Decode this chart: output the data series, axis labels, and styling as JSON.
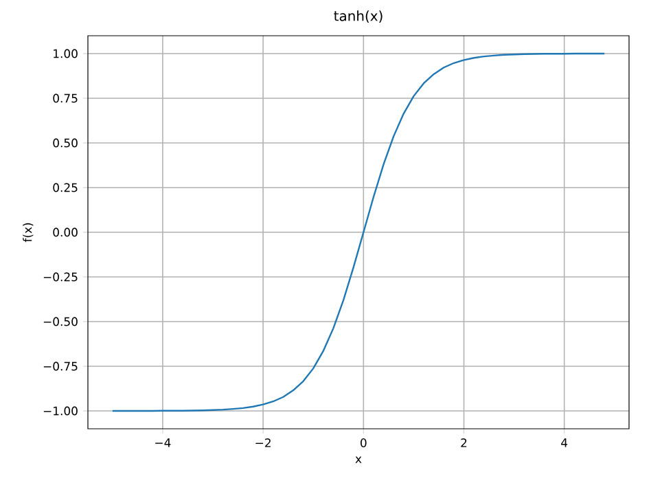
{
  "chart_data": {
    "type": "line",
    "title": "tanh(x)",
    "xlabel": "x",
    "ylabel": "f(x)",
    "x": [
      -5,
      -4.8,
      -4.6,
      -4.4,
      -4.2,
      -4,
      -3.8,
      -3.6,
      -3.4,
      -3.2,
      -3,
      -2.8,
      -2.6,
      -2.4,
      -2.2,
      -2,
      -1.8,
      -1.6,
      -1.4,
      -1.2,
      -1,
      -0.8,
      -0.6,
      -0.4,
      -0.2,
      0,
      0.2,
      0.4,
      0.6,
      0.8,
      1,
      1.2,
      1.4,
      1.6,
      1.8,
      2,
      2.2,
      2.4,
      2.6,
      2.8,
      3,
      3.2,
      3.4,
      3.6,
      3.8,
      4,
      4.2,
      4.4,
      4.6,
      4.8
    ],
    "series": [
      {
        "color": "#1f77b4",
        "values": [
          -1.0,
          -1.0,
          -1.0,
          -1.0,
          -1.0,
          -0.999,
          -0.999,
          -0.999,
          -0.998,
          -0.997,
          -0.995,
          -0.993,
          -0.989,
          -0.984,
          -0.976,
          -0.964,
          -0.947,
          -0.922,
          -0.885,
          -0.834,
          -0.762,
          -0.664,
          -0.537,
          -0.38,
          -0.197,
          0.0,
          0.197,
          0.38,
          0.537,
          0.664,
          0.762,
          0.834,
          0.885,
          0.922,
          0.947,
          0.964,
          0.976,
          0.984,
          0.989,
          0.993,
          0.995,
          0.997,
          0.998,
          0.999,
          0.999,
          0.999,
          1.0,
          1.0,
          1.0,
          1.0
        ]
      }
    ],
    "xlim": [
      -5.49,
      5.29
    ],
    "ylim": [
      -1.1,
      1.1
    ],
    "xticks": [
      {
        "value": -4,
        "label": "−4"
      },
      {
        "value": -2,
        "label": "−2"
      },
      0,
      2,
      4
    ],
    "yticks": [
      {
        "value": -1,
        "label": "−1.00"
      },
      {
        "value": -0.75,
        "label": "−0.75"
      },
      {
        "value": -0.5,
        "label": "−0.50"
      },
      {
        "value": -0.25,
        "label": "−0.25"
      },
      {
        "value": 0,
        "label": "0.00"
      },
      {
        "value": 0.25,
        "label": "0.25"
      },
      {
        "value": 0.5,
        "label": "0.50"
      },
      {
        "value": 0.75,
        "label": "0.75"
      },
      {
        "value": 1,
        "label": "1.00"
      }
    ],
    "grid": true
  }
}
